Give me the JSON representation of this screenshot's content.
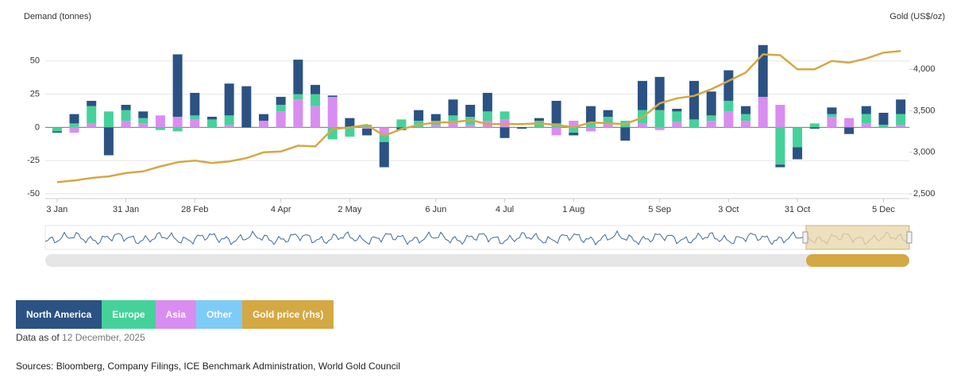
{
  "chart_data": {
    "type": "bar",
    "y_label": "Demand (tonnes)",
    "y2_label": "Gold (US$/oz)",
    "categories": [
      "3 Jan",
      null,
      null,
      null,
      "31 Jan",
      null,
      null,
      null,
      "28 Feb",
      null,
      null,
      null,
      null,
      "4 Apr",
      null,
      null,
      null,
      "2 May",
      null,
      null,
      null,
      null,
      "6 Jun",
      null,
      null,
      null,
      "4 Jul",
      null,
      null,
      null,
      "1 Aug",
      null,
      null,
      null,
      null,
      "5 Sep",
      null,
      null,
      null,
      "3 Oct",
      null,
      null,
      null,
      "31 Oct",
      null,
      null,
      null,
      null,
      "5 Dec",
      null
    ],
    "series": [
      {
        "name": "North America",
        "color": "#2b5283",
        "values": [
          -1,
          7,
          4,
          -21,
          4,
          5,
          0,
          47,
          17,
          2,
          24,
          31,
          5,
          6,
          26,
          7,
          1,
          7,
          -5,
          -19,
          -2,
          8,
          5,
          12,
          9,
          14,
          -8,
          -1,
          2,
          17,
          -2,
          13,
          5,
          -10,
          22,
          25,
          2,
          29,
          18,
          23,
          6,
          39,
          -2,
          -9,
          -1,
          5,
          -5,
          6,
          9,
          11
        ]
      },
      {
        "name": "Europe",
        "color": "#45d29a",
        "values": [
          -3,
          3,
          13,
          12,
          8,
          4,
          -2,
          -3,
          3,
          6,
          7,
          0,
          0,
          5,
          4,
          9,
          -9,
          -7,
          2,
          -5,
          6,
          5,
          3,
          4,
          6,
          7,
          6,
          0,
          5,
          3,
          -4,
          3,
          5,
          5,
          10,
          13,
          8,
          6,
          4,
          8,
          5,
          0,
          -28,
          -15,
          3,
          2,
          0,
          7,
          2,
          8
        ]
      },
      {
        "name": "Asia",
        "color": "#d98df1",
        "values": [
          0,
          -4,
          3,
          0,
          5,
          3,
          9,
          8,
          6,
          0,
          2,
          0,
          5,
          12,
          21,
          16,
          23,
          0,
          -1,
          -6,
          0,
          0,
          2,
          5,
          2,
          5,
          6,
          0,
          0,
          -6,
          5,
          -3,
          3,
          0,
          3,
          -2,
          4,
          0,
          5,
          12,
          5,
          23,
          17,
          0,
          0,
          8,
          7,
          3,
          0,
          2
        ]
      },
      {
        "name": "Other",
        "color": "#7fcbf7",
        "values": [
          0,
          0,
          0,
          0,
          0,
          0,
          0,
          0,
          0,
          0,
          0,
          0,
          0,
          0,
          0,
          0,
          0,
          0,
          0,
          0,
          0,
          0,
          0,
          0,
          0,
          0,
          0,
          0,
          0,
          0,
          0,
          0,
          0,
          0,
          0,
          0,
          0,
          0,
          0,
          0,
          0,
          0,
          0,
          0,
          0,
          0,
          0,
          0,
          0,
          0
        ]
      },
      {
        "name": "Gold price (rhs)",
        "type": "line",
        "axis": "y2",
        "color": "#d4a843",
        "values": [
          2640,
          2660,
          2690,
          2710,
          2750,
          2770,
          2830,
          2880,
          2900,
          2870,
          2890,
          2930,
          3000,
          3010,
          3080,
          3070,
          3280,
          3300,
          3330,
          3200,
          3280,
          3330,
          3360,
          3360,
          3390,
          3340,
          3340,
          3340,
          3350,
          3330,
          3300,
          3360,
          3350,
          3340,
          3420,
          3590,
          3650,
          3680,
          3760,
          3860,
          3960,
          4180,
          4170,
          4000,
          4000,
          4100,
          4080,
          4130,
          4200,
          4220
        ]
      }
    ],
    "ylim": [
      -50,
      75
    ],
    "yticks": [
      -50,
      -25,
      0,
      25,
      50
    ],
    "y2lim": [
      2500,
      4500
    ],
    "y2ticks": [
      {
        "value": 2500,
        "label": "2,500"
      },
      {
        "value": 3000,
        "label": "3,000"
      },
      {
        "value": 3500,
        "label": "3,500"
      },
      {
        "value": 4000,
        "label": "4,000"
      }
    ],
    "grid": true
  },
  "footer": {
    "as_of_label": "Data as of",
    "as_of_date": "12 December, 2025",
    "sources": "Sources: Bloomberg, Company Filings, ICE Benchmark Administration, World Gold Council"
  }
}
